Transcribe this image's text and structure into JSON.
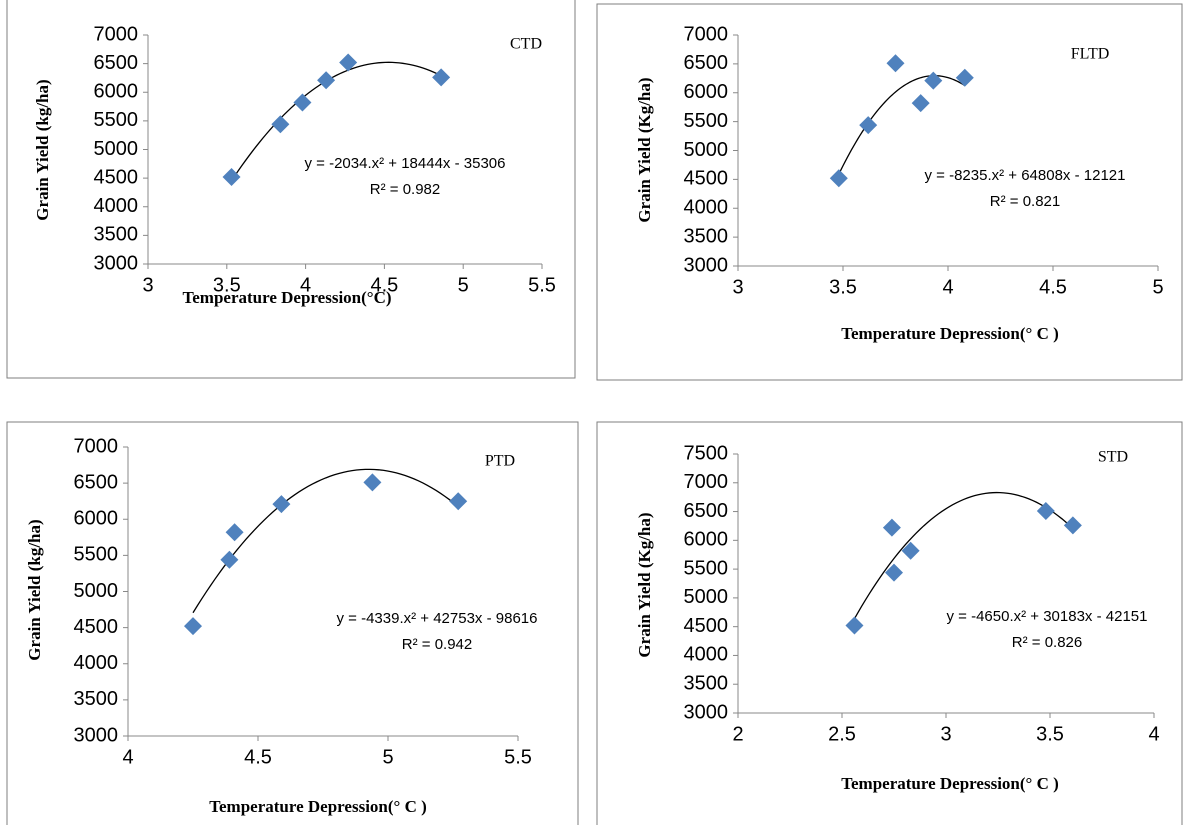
{
  "chart_data": [
    {
      "type": "scatter",
      "x_label": "Temperature Depression(°C)",
      "y_label": "Grain Yield (kg/ha)",
      "xlim": [
        3,
        5.5
      ],
      "xticks": [
        3,
        3.5,
        4,
        4.5,
        5,
        5.5
      ],
      "ylim": [
        3000,
        7000
      ],
      "yticks": [
        3000,
        3500,
        4000,
        4500,
        5000,
        5500,
        6000,
        6500,
        7000
      ],
      "series": [
        {
          "name": "CTD",
          "color": "#4f81bd",
          "x": [
            3.53,
            3.84,
            3.98,
            4.13,
            4.27,
            4.86
          ],
          "values": [
            4520,
            5440,
            5820,
            6210,
            6520,
            6260
          ]
        }
      ],
      "trendline": {
        "order": 2,
        "color": "#000000",
        "equation": "y = -2034.x² + 18444x - 35306",
        "r2_label": "R² = 0.982"
      }
    },
    {
      "type": "scatter",
      "x_label": "Temperature Depression(° C )",
      "y_label": "Grain Yield (Kg/ha)",
      "xlim": [
        3,
        5
      ],
      "xticks": [
        3,
        3.5,
        4,
        4.5,
        5
      ],
      "ylim": [
        3000,
        7000
      ],
      "yticks": [
        3000,
        3500,
        4000,
        4500,
        5000,
        5500,
        6000,
        6500,
        7000
      ],
      "series": [
        {
          "name": "FLTD",
          "color": "#4f81bd",
          "x": [
            3.48,
            3.62,
            3.75,
            3.87,
            3.93,
            4.08
          ],
          "values": [
            4520,
            5440,
            6510,
            5820,
            6210,
            6260
          ]
        }
      ],
      "trendline": {
        "order": 2,
        "color": "#000000",
        "equation": "y = -8235.x² + 64808x - 12121",
        "r2_label": "R² = 0.821"
      }
    },
    {
      "type": "scatter",
      "x_label": "Temperature Depression(° C )",
      "y_label": "Grain Yield (kg/ha)",
      "xlim": [
        4,
        5.5
      ],
      "xticks": [
        4,
        4.5,
        5,
        5.5
      ],
      "ylim": [
        3000,
        7000
      ],
      "yticks": [
        3000,
        3500,
        4000,
        4500,
        5000,
        5500,
        6000,
        6500,
        7000
      ],
      "series": [
        {
          "name": "PTD",
          "color": "#4f81bd",
          "x": [
            4.25,
            4.39,
            4.41,
            4.59,
            4.94,
            5.27
          ],
          "values": [
            4520,
            5440,
            5820,
            6210,
            6510,
            6250
          ]
        }
      ],
      "trendline": {
        "order": 2,
        "color": "#000000",
        "equation": "y = -4339.x² + 42753x - 98616",
        "r2_label": "R² = 0.942"
      }
    },
    {
      "type": "scatter",
      "x_label": "Temperature Depression(° C )",
      "y_label": "Grain Yield (Kg/ha)",
      "xlim": [
        2,
        4
      ],
      "xticks": [
        2,
        2.5,
        3,
        3.5,
        4
      ],
      "ylim": [
        3000,
        7500
      ],
      "yticks": [
        3000,
        3500,
        4000,
        4500,
        5000,
        5500,
        6000,
        6500,
        7000,
        7500
      ],
      "series": [
        {
          "name": "STD",
          "color": "#4f81bd",
          "x": [
            2.56,
            2.74,
            2.75,
            2.83,
            3.48,
            3.61
          ],
          "values": [
            4520,
            6220,
            5440,
            5820,
            6510,
            6260
          ]
        }
      ],
      "trendline": {
        "order": 2,
        "color": "#000000",
        "equation": "y = -4650.x² + 30183x - 42151",
        "r2_label": "R² = 0.826"
      }
    }
  ]
}
